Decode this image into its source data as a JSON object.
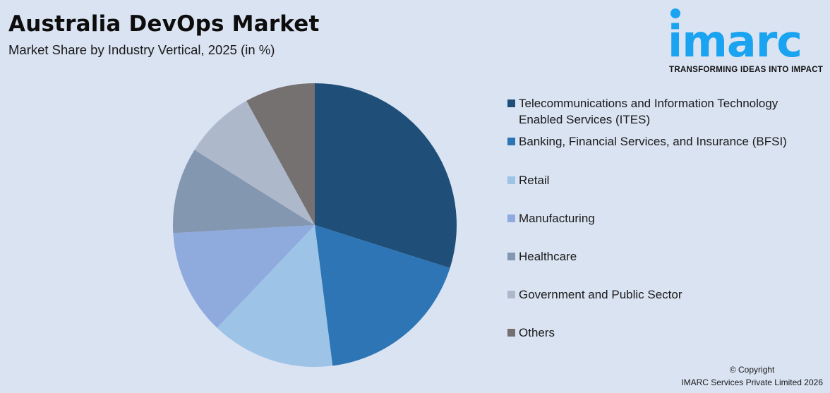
{
  "header": {
    "title": "Australia DevOps Market",
    "subtitle": "Market Share by Industry Vertical, 2025 (in %)"
  },
  "logo": {
    "wordmark": "imarc",
    "tagline": "TRANSFORMING IDEAS INTO IMPACT",
    "color": "#1aa3f0"
  },
  "legend": {
    "items": [
      {
        "line1": "Telecommunications and Information Technology",
        "line2": "Enabled Services (ITES)",
        "color": "#1f4e79"
      },
      {
        "line1": "Banking, Financial Services, and Insurance (BFSI)",
        "line2": "",
        "color": "#2e75b6"
      },
      {
        "line1": "Retail",
        "line2": "",
        "color": "#9dc3e6"
      },
      {
        "line1": "Manufacturing",
        "line2": "",
        "color": "#8faadc"
      },
      {
        "line1": "Healthcare",
        "line2": "",
        "color": "#8497b0"
      },
      {
        "line1": "Government and Public Sector",
        "line2": "",
        "color": "#adb9ca"
      },
      {
        "line1": "Others",
        "line2": "",
        "color": "#767171"
      }
    ]
  },
  "footer": {
    "copyright_line1": "© Copyright",
    "copyright_line2": "IMARC Services Private Limited 2026"
  },
  "chart_data": {
    "type": "pie",
    "title": "Australia DevOps Market",
    "subtitle": "Market Share by Industry Vertical, 2025 (in %)",
    "categories": [
      "Telecommunications and Information Technology Enabled Services (ITES)",
      "Banking, Financial Services, and Insurance (BFSI)",
      "Retail",
      "Manufacturing",
      "Healthcare",
      "Government and Public Sector",
      "Others"
    ],
    "values": [
      29.9,
      18.1,
      14.1,
      12.0,
      9.8,
      8.1,
      8.0
    ],
    "colors": [
      "#1f4e79",
      "#2e75b6",
      "#9dc3e6",
      "#8faadc",
      "#8497b0",
      "#adb9ca",
      "#767171"
    ],
    "start_angle_deg": 0,
    "direction": "clockwise",
    "data_labels": false,
    "legend_position": "right",
    "center": [
      446,
      319
    ],
    "radius": 201
  }
}
